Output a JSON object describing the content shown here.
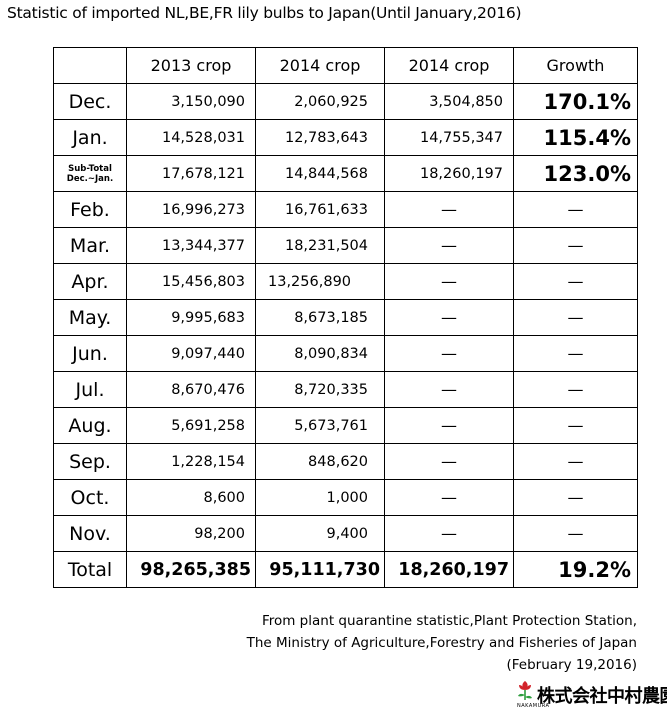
{
  "title": "Statistic of imported NL,BE,FR lily bulbs to Japan(Until January,2016)",
  "headers": [
    "",
    "2013 crop",
    "2014 crop",
    "2014 crop",
    "Growth"
  ],
  "rows": [
    {
      "month": "Dec.",
      "c2013": "3,150,090",
      "c2014": "2,060,925",
      "c2014b": "3,504,850",
      "growth": "170.1%"
    },
    {
      "month": "Jan.",
      "c2013": "14,528,031",
      "c2014": "12,783,643",
      "c2014b": "14,755,347",
      "growth": "115.4%"
    },
    {
      "month_line1": "Sub-Total",
      "month_line2": "Dec.~Jan.",
      "c2013": "17,678,121",
      "c2014": "14,844,568",
      "c2014b": "18,260,197",
      "growth": "123.0%"
    },
    {
      "month": "Feb.",
      "c2013": "16,996,273",
      "c2014": "16,761,633",
      "c2014b": "—",
      "growth": "—"
    },
    {
      "month": "Mar.",
      "c2013": "13,344,377",
      "c2014": "18,231,504",
      "c2014b": "—",
      "growth": "—"
    },
    {
      "month": "Apr.",
      "c2013": "15,456,803",
      "c2014": "13,256,890",
      "c2014b": "—",
      "growth": "—"
    },
    {
      "month": "May.",
      "c2013": "9,995,683",
      "c2014": "8,673,185",
      "c2014b": "—",
      "growth": "—"
    },
    {
      "month": "Jun.",
      "c2013": "9,097,440",
      "c2014": "8,090,834",
      "c2014b": "—",
      "growth": "—"
    },
    {
      "month": "Jul.",
      "c2013": "8,670,476",
      "c2014": "8,720,335",
      "c2014b": "—",
      "growth": "—"
    },
    {
      "month": "Aug.",
      "c2013": "5,691,258",
      "c2014": "5,673,761",
      "c2014b": "—",
      "growth": "—"
    },
    {
      "month": "Sep.",
      "c2013": "1,228,154",
      "c2014": "848,620",
      "c2014b": "—",
      "growth": "—"
    },
    {
      "month": "Oct.",
      "c2013": "8,600",
      "c2014": "1,000",
      "c2014b": "—",
      "growth": "—"
    },
    {
      "month": "Nov.",
      "c2013": "98,200",
      "c2014": "9,400",
      "c2014b": "—",
      "growth": "—"
    }
  ],
  "total": {
    "label": "Total",
    "c2013": "98,265,385",
    "c2014": "95,111,730",
    "c2014b": "18,260,197",
    "growth": "19.2%"
  },
  "source": {
    "line1": "From plant quarantine statistic,Plant Protection Station,",
    "line2": "The Ministry of Agriculture,Forestry and Fisheries of Japan",
    "line3": "(February 19,2016)"
  },
  "logo": {
    "text": "株式会社中村農園",
    "small": "NAKAMURA"
  },
  "colors": {
    "logo_red": "#d2232a",
    "logo_green": "#2e9e3e"
  }
}
